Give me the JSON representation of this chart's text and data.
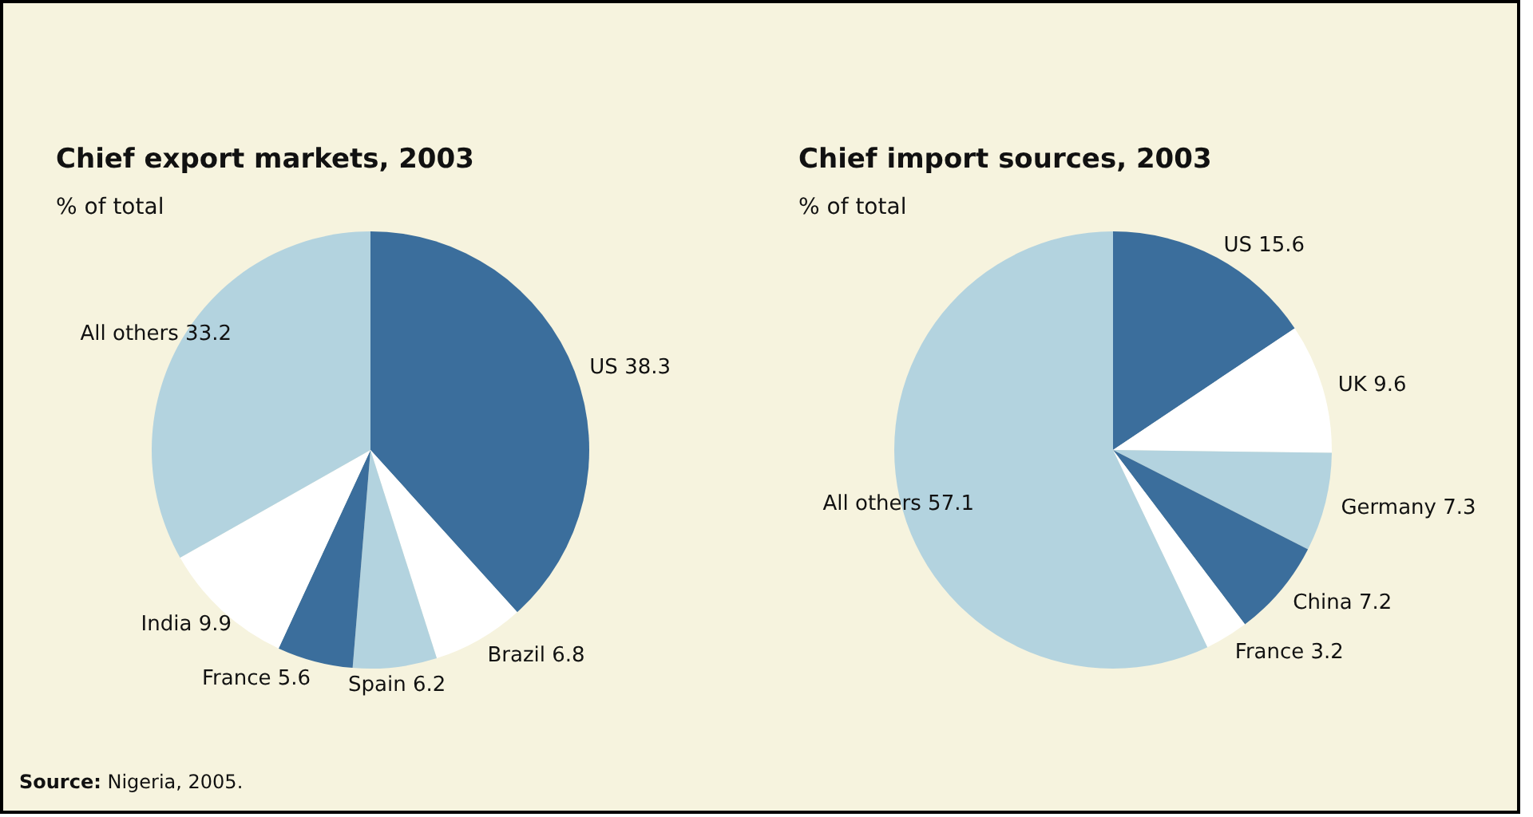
{
  "chart_data": [
    {
      "type": "pie",
      "title": "Chief export markets, 2003",
      "subtitle": "% of total",
      "categories": [
        "US",
        "Brazil",
        "Spain",
        "France",
        "India",
        "All others"
      ],
      "values": [
        38.3,
        6.8,
        6.2,
        5.6,
        9.9,
        33.2
      ],
      "colors": [
        "#3b6e9c",
        "#ffffff",
        "#b3d3df",
        "#3b6e9c",
        "#ffffff",
        "#b3d3df"
      ],
      "data_labels": true,
      "annotations": [
        "Source: Nigeria, 2005."
      ]
    },
    {
      "type": "pie",
      "title": "Chief import sources, 2003",
      "subtitle": "% of total",
      "categories": [
        "US",
        "UK",
        "Germany",
        "China",
        "France",
        "All others"
      ],
      "values": [
        15.6,
        9.6,
        7.3,
        7.2,
        3.2,
        57.1
      ],
      "colors": [
        "#3b6e9c",
        "#ffffff",
        "#b3d3df",
        "#3b6e9c",
        "#ffffff",
        "#b3d3df"
      ],
      "data_labels": true
    }
  ]
}
